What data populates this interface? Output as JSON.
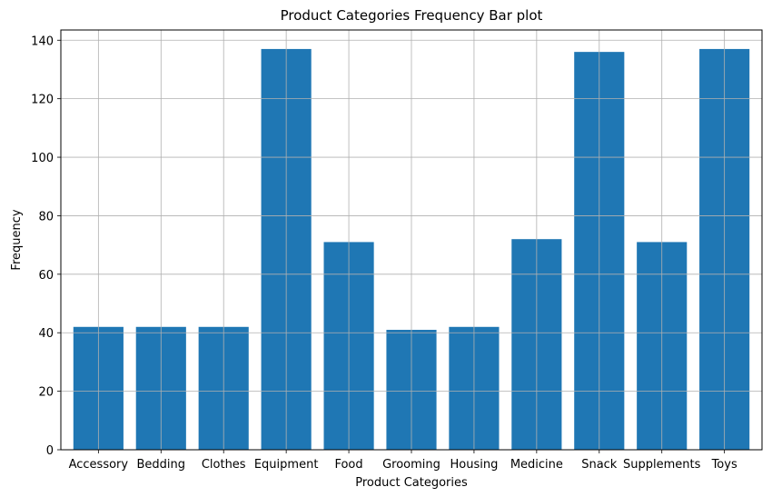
{
  "chart_data": {
    "type": "bar",
    "title": "Product Categories Frequency Bar plot",
    "xlabel": "Product Categories",
    "ylabel": "Frequency",
    "categories": [
      "Accessory",
      "Bedding",
      "Clothes",
      "Equipment",
      "Food",
      "Grooming",
      "Housing",
      "Medicine",
      "Snack",
      "Supplements",
      "Toys"
    ],
    "values": [
      42,
      42,
      42,
      137,
      71,
      41,
      42,
      72,
      136,
      71,
      137
    ],
    "ylim": [
      0,
      143.5
    ],
    "yticks": [
      0,
      20,
      40,
      60,
      80,
      100,
      120,
      140
    ],
    "ytick_labels": [
      "0",
      "20",
      "40",
      "60",
      "80",
      "100",
      "120",
      "140"
    ],
    "grid": true,
    "bar_color": "#1f77b4",
    "grid_color": "#b0b0b0"
  }
}
